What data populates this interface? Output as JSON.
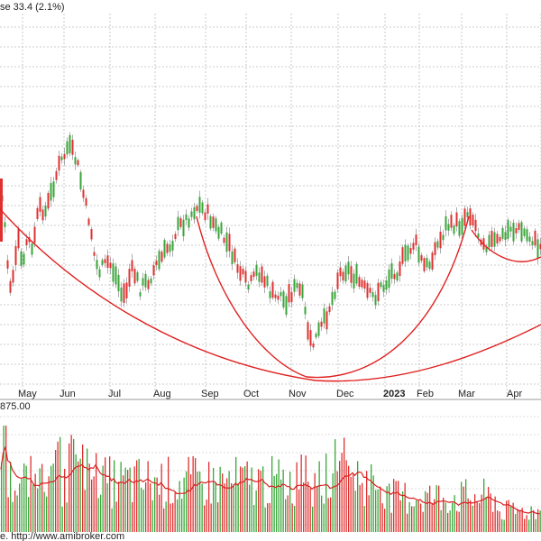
{
  "header_text": "se 33.4 (2.1%)",
  "volume_label": "875.00",
  "footer_text": "e. http://www.amibroker.com",
  "colors": {
    "up": "#3aa63a",
    "down": "#e03030",
    "curve": "#e02020",
    "grid": "#bdbdbd",
    "volume_ma": "#d82020"
  },
  "chart_data": {
    "type": "candlestick",
    "x_tick_labels": [
      "May",
      "Jun",
      "Jul",
      "Aug",
      "Sep",
      "Oct",
      "Nov",
      "Dec",
      "2023",
      "Feb",
      "Mar",
      "Apr"
    ],
    "bold_tick": "2023",
    "price_series_note": "",
    "price_path": [
      [
        0,
        200
      ],
      [
        5,
        250
      ],
      [
        10,
        320
      ],
      [
        15,
        300
      ],
      [
        20,
        270
      ],
      [
        25,
        300
      ],
      [
        30,
        260
      ],
      [
        35,
        280
      ],
      [
        40,
        245
      ],
      [
        45,
        230
      ],
      [
        50,
        235
      ],
      [
        55,
        220
      ],
      [
        60,
        200
      ],
      [
        65,
        185
      ],
      [
        70,
        175
      ],
      [
        75,
        162
      ],
      [
        80,
        170
      ],
      [
        85,
        180
      ],
      [
        90,
        205
      ],
      [
        95,
        230
      ],
      [
        100,
        250
      ],
      [
        105,
        290
      ],
      [
        110,
        300
      ],
      [
        115,
        295
      ],
      [
        120,
        290
      ],
      [
        125,
        300
      ],
      [
        130,
        310
      ],
      [
        135,
        330
      ],
      [
        140,
        320
      ],
      [
        145,
        300
      ],
      [
        150,
        305
      ],
      [
        155,
        320
      ],
      [
        160,
        315
      ],
      [
        165,
        310
      ],
      [
        170,
        300
      ],
      [
        175,
        290
      ],
      [
        180,
        285
      ],
      [
        185,
        275
      ],
      [
        190,
        270
      ],
      [
        195,
        255
      ],
      [
        200,
        250
      ],
      [
        205,
        245
      ],
      [
        210,
        240
      ],
      [
        215,
        232
      ],
      [
        220,
        228
      ],
      [
        225,
        232
      ],
      [
        230,
        238
      ],
      [
        235,
        245
      ],
      [
        240,
        255
      ],
      [
        245,
        260
      ],
      [
        250,
        268
      ],
      [
        255,
        275
      ],
      [
        260,
        290
      ],
      [
        265,
        300
      ],
      [
        270,
        310
      ],
      [
        275,
        318
      ],
      [
        280,
        312
      ],
      [
        285,
        300
      ],
      [
        290,
        305
      ],
      [
        295,
        315
      ],
      [
        300,
        325
      ],
      [
        305,
        330
      ],
      [
        310,
        325
      ],
      [
        315,
        335
      ],
      [
        320,
        328
      ],
      [
        325,
        322
      ],
      [
        330,
        318
      ],
      [
        335,
        330
      ],
      [
        340,
        360
      ],
      [
        345,
        385
      ],
      [
        350,
        375
      ],
      [
        355,
        365
      ],
      [
        360,
        355
      ],
      [
        365,
        340
      ],
      [
        370,
        325
      ],
      [
        375,
        305
      ],
      [
        380,
        300
      ],
      [
        385,
        298
      ],
      [
        390,
        305
      ],
      [
        395,
        310
      ],
      [
        400,
        315
      ],
      [
        405,
        322
      ],
      [
        410,
        328
      ],
      [
        415,
        330
      ],
      [
        420,
        320
      ],
      [
        425,
        318
      ],
      [
        430,
        310
      ],
      [
        435,
        300
      ],
      [
        440,
        300
      ],
      [
        445,
        290
      ],
      [
        450,
        285
      ],
      [
        455,
        275
      ],
      [
        460,
        268
      ],
      [
        465,
        285
      ],
      [
        470,
        295
      ],
      [
        475,
        295
      ],
      [
        480,
        280
      ],
      [
        485,
        272
      ],
      [
        490,
        262
      ],
      [
        495,
        248
      ],
      [
        500,
        252
      ],
      [
        505,
        248
      ],
      [
        510,
        250
      ],
      [
        515,
        240
      ],
      [
        520,
        232
      ],
      [
        525,
        245
      ],
      [
        530,
        258
      ],
      [
        535,
        265
      ],
      [
        540,
        272
      ],
      [
        545,
        268
      ],
      [
        550,
        270
      ],
      [
        555,
        262
      ],
      [
        560,
        262
      ],
      [
        565,
        250
      ],
      [
        570,
        256
      ],
      [
        575,
        255
      ],
      [
        580,
        258
      ],
      [
        585,
        262
      ],
      [
        590,
        265
      ],
      [
        595,
        272
      ],
      [
        600,
        275
      ]
    ],
    "volume_seed": 7
  }
}
